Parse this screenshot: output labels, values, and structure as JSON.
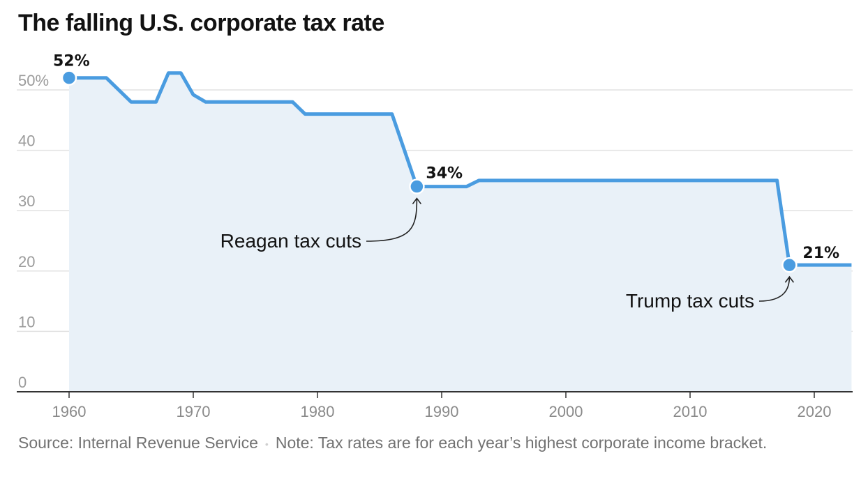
{
  "chart_data": {
    "type": "area",
    "title": "The falling U.S. corporate tax rate",
    "xlabel": "",
    "ylabel": "",
    "xlim": [
      1956,
      2023
    ],
    "ylim": [
      0,
      52
    ],
    "y_ticks": [
      {
        "value": 0,
        "label": "0"
      },
      {
        "value": 10,
        "label": "10"
      },
      {
        "value": 20,
        "label": "20"
      },
      {
        "value": 30,
        "label": "30"
      },
      {
        "value": 40,
        "label": "40"
      },
      {
        "value": 50,
        "label": "50%"
      }
    ],
    "x_ticks": [
      1960,
      1970,
      1980,
      1990,
      2000,
      2010,
      2020
    ],
    "grid": true,
    "colors": {
      "line": "#4a9ce0",
      "area": "#e9f1f8",
      "grid": "#e2e2e2",
      "axis": "#333333"
    },
    "x": [
      1960,
      1963,
      1965,
      1967,
      1968,
      1969,
      1970,
      1971,
      1978,
      1979,
      1986,
      1988,
      1992,
      1993,
      2017,
      2018,
      2023
    ],
    "y": [
      52,
      52,
      48,
      48,
      52.8,
      52.8,
      49.2,
      48,
      48,
      46,
      46,
      34,
      34,
      35,
      35,
      21,
      21
    ],
    "highlights": [
      {
        "x": 1960,
        "y": 52,
        "label": "52%"
      },
      {
        "x": 1988,
        "y": 34,
        "label": "34%"
      },
      {
        "x": 2018,
        "y": 21,
        "label": "21%"
      }
    ],
    "annotations": [
      {
        "text": "Reagan tax cuts",
        "target_x": 1988,
        "target_y": 34
      },
      {
        "text": "Trump tax cuts",
        "target_x": 2018,
        "target_y": 21
      }
    ]
  },
  "footer": {
    "source": "Source: Internal Revenue Service",
    "separator": "•",
    "note": "Note: Tax rates are for each year’s highest corporate income bracket."
  }
}
